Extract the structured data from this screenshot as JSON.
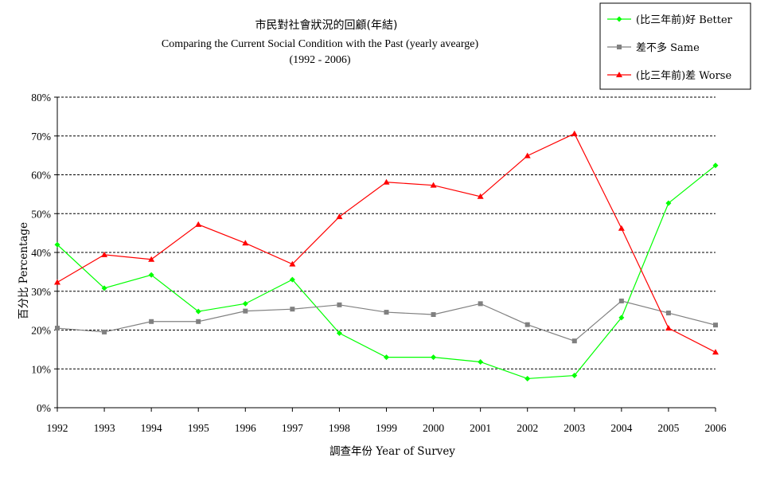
{
  "chart_data": {
    "type": "line",
    "title": "市民對社會狀況的回顧(年結)",
    "subtitle": "Comparing the Current Social Condition with the Past (yearly avearge)",
    "subtitle2": "(1992 - 2006)",
    "xlabel": "調查年份 Year of Survey",
    "ylabel": "百分比 Percentage",
    "ylim": [
      0,
      80
    ],
    "yticks": [
      0,
      10,
      20,
      30,
      40,
      50,
      60,
      70,
      80
    ],
    "ytick_labels": [
      "0%",
      "10%",
      "20%",
      "30%",
      "40%",
      "50%",
      "60%",
      "70%",
      "80%"
    ],
    "categories": [
      "1992",
      "1993",
      "1994",
      "1995",
      "1996",
      "1997",
      "1998",
      "1999",
      "2000",
      "2001",
      "2002",
      "2003",
      "2004",
      "2005",
      "2006"
    ],
    "grid": true,
    "legend_position": "top-right",
    "series": [
      {
        "name": "(比三年前)好 Better",
        "color": "#00ff00",
        "marker": "diamond",
        "values": [
          42,
          30.8,
          34.2,
          24.8,
          26.8,
          33,
          19.2,
          13,
          13,
          11.8,
          7.5,
          8.3,
          23.2,
          52.7,
          62.4
        ]
      },
      {
        "name": "差不多 Same",
        "color": "#808080",
        "marker": "square",
        "values": [
          20.5,
          19.5,
          22.2,
          22.2,
          24.9,
          25.4,
          26.5,
          24.6,
          24,
          26.8,
          21.4,
          17.2,
          27.5,
          24.4,
          21.3
        ]
      },
      {
        "name": "(比三年前)差 Worse",
        "color": "#ff0000",
        "marker": "triangle",
        "values": [
          32.3,
          39.4,
          38.2,
          47.2,
          42.4,
          37,
          49.2,
          58.1,
          57.3,
          54.4,
          64.9,
          70.6,
          46.2,
          20.5,
          14.3
        ]
      }
    ]
  }
}
